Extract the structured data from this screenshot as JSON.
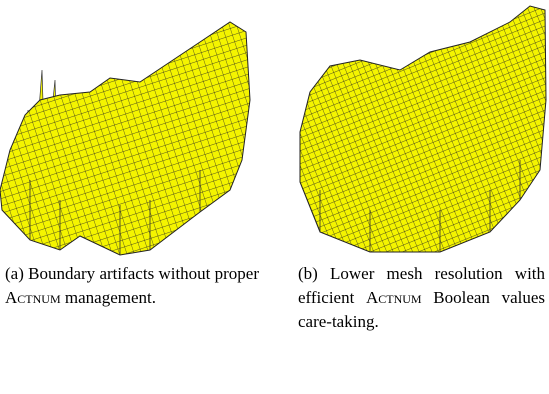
{
  "figures": [
    {
      "caption": {
        "label": "(a)",
        "before": "Boundary artifacts without proper",
        "term": "Actnum",
        "after": "management."
      }
    },
    {
      "caption": {
        "label": "(b)",
        "before": "Lower mesh resolution with efficient",
        "term": "Actnum",
        "after": "Boolean values care-taking."
      }
    }
  ]
}
